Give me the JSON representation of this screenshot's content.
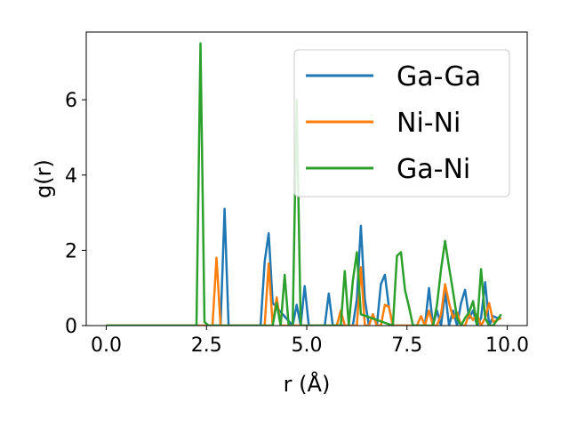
{
  "chart_data": {
    "type": "line",
    "xlabel": "r (Å)",
    "ylabel": "g(r)",
    "xlim": [
      -0.5,
      10.5
    ],
    "ylim": [
      0,
      7.8
    ],
    "xticks": [
      0.0,
      2.5,
      5.0,
      7.5,
      10.0
    ],
    "xtick_labels": [
      "0.0",
      "2.5",
      "5.0",
      "7.5",
      "10.0"
    ],
    "yticks": [
      0,
      2,
      4,
      6
    ],
    "ytick_labels": [
      "0",
      "2",
      "4",
      "6"
    ],
    "grid": false,
    "legend_position": "top-right",
    "series": [
      {
        "name": "Ga-Ga",
        "color": "#1f77b4",
        "x": [
          0,
          2.75,
          2.85,
          2.95,
          3.05,
          3.85,
          3.95,
          4.05,
          4.15,
          4.65,
          4.75,
          4.85,
          4.95,
          5.05,
          5.15,
          5.45,
          5.55,
          5.65,
          5.75,
          6.15,
          6.25,
          6.35,
          6.45,
          6.55,
          6.65,
          6.75,
          6.85,
          6.95,
          7.05,
          7.15,
          7.95,
          8.05,
          8.15,
          8.25,
          8.35,
          8.45,
          8.55,
          8.65,
          8.75,
          8.85,
          8.95,
          9.05,
          9.15,
          9.25,
          9.35,
          9.45,
          9.55,
          9.65,
          9.75,
          9.85
        ],
        "y": [
          0,
          0,
          0,
          3.1,
          0,
          0,
          1.7,
          2.45,
          0.6,
          0,
          0.55,
          0,
          1.05,
          0,
          0,
          0,
          0.85,
          0,
          0,
          0,
          0.7,
          2.65,
          0.7,
          0,
          0.3,
          0,
          1.1,
          1.35,
          0.5,
          0,
          0,
          1.0,
          0,
          0.4,
          0,
          0.9,
          0,
          0.4,
          0,
          0.6,
          0.95,
          0.2,
          0.4,
          0,
          0.2,
          1.15,
          0,
          0.25,
          0.2,
          0.2
        ]
      },
      {
        "name": "Ni-Ni",
        "color": "#ff7f0e",
        "x": [
          0,
          2.55,
          2.65,
          2.75,
          2.85,
          3.85,
          3.95,
          4.05,
          4.15,
          4.25,
          4.35,
          4.45,
          5.65,
          5.75,
          5.85,
          5.95,
          6.15,
          6.25,
          6.35,
          6.45,
          6.55,
          6.65,
          6.75,
          6.85,
          6.95,
          7.05,
          7.15,
          7.75,
          7.85,
          7.95,
          8.05,
          8.15,
          8.25,
          8.35,
          8.45,
          8.55,
          8.65,
          8.75,
          8.85,
          8.95,
          9.05,
          9.15,
          9.25,
          9.35,
          9.45,
          9.55,
          9.65,
          9.75,
          9.85
        ],
        "y": [
          0,
          0,
          0,
          1.8,
          0,
          0,
          0,
          1.65,
          0,
          0.75,
          0,
          0,
          0,
          0,
          0.4,
          0,
          0,
          0,
          1.55,
          0,
          0,
          0.3,
          0,
          0,
          0.55,
          0.5,
          0,
          0,
          0.25,
          0,
          0.4,
          0,
          0,
          0.3,
          1.1,
          0.6,
          0.2,
          0.35,
          0,
          0,
          0.3,
          0.15,
          0.3,
          0,
          0.2,
          0.6,
          0.1,
          0.15,
          0.2
        ]
      },
      {
        "name": "Ga-Ni",
        "color": "#2ca02c",
        "x": [
          0,
          2.25,
          2.35,
          2.45,
          2.55,
          2.65,
          4.15,
          4.25,
          4.35,
          4.45,
          4.55,
          4.65,
          4.75,
          4.85,
          5.85,
          5.95,
          6.05,
          6.15,
          6.25,
          6.35,
          7.15,
          7.25,
          7.35,
          7.45,
          7.55,
          7.65,
          8.15,
          8.25,
          8.35,
          8.45,
          8.55,
          8.65,
          8.75,
          8.85,
          8.95,
          9.05,
          9.15,
          9.25,
          9.35,
          9.45,
          9.55,
          9.65,
          9.75,
          9.85
        ],
        "y": [
          0,
          0,
          7.5,
          0.1,
          0,
          0,
          0,
          0.6,
          0,
          1.35,
          0,
          0,
          6.0,
          0,
          0,
          1.45,
          0,
          1.2,
          1.95,
          0.3,
          0,
          1.85,
          1.95,
          0.95,
          0.5,
          0,
          0,
          0.55,
          1.5,
          2.25,
          1.55,
          0.9,
          0.2,
          0,
          0.2,
          0.35,
          0.65,
          0,
          1.5,
          0.2,
          0,
          0,
          0.15,
          0.3
        ]
      }
    ]
  }
}
